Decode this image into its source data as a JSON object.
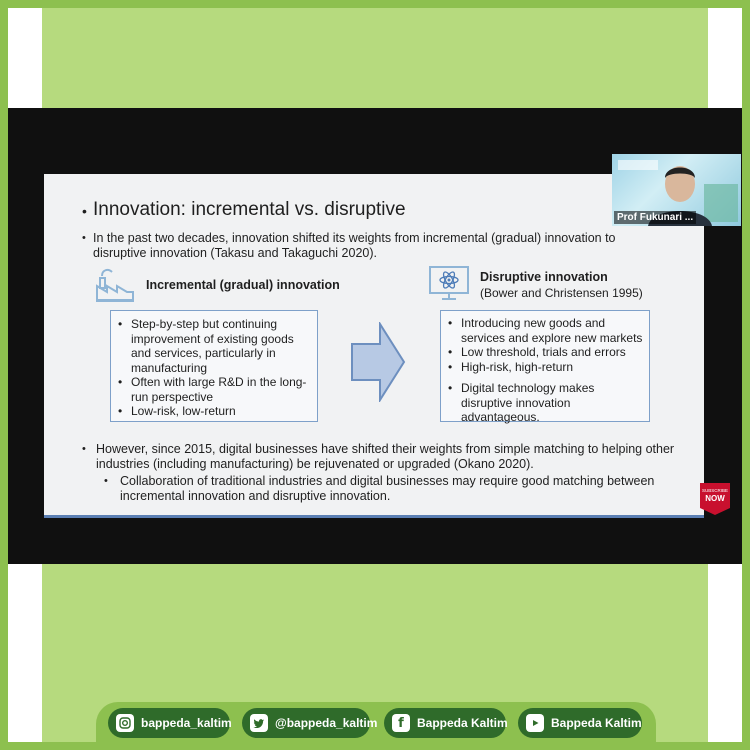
{
  "slide": {
    "title": "Innovation: incremental vs. disruptive",
    "intro": "In the past two decades, innovation shifted its weights from incremental (gradual) innovation to disruptive innovation (Takasu and Takaguchi 2020).",
    "left": {
      "heading": "Incremental (gradual) innovation",
      "items": [
        "Step-by-step but continuing improvement of existing goods and services, particularly in manufacturing",
        "Often with large R&D in the long-run perspective",
        "Low-risk, low-return"
      ]
    },
    "right": {
      "heading": "Disruptive innovation",
      "subheading": "(Bower and Christensen 1995)",
      "items": [
        "Introducing new goods and services and explore new markets",
        "Low threshold, trials and errors",
        "High-risk, high-return",
        "Digital technology makes disruptive innovation advantageous."
      ]
    },
    "however": "However, since 2015, digital businesses have shifted their weights from simple matching to helping other industries (including manufacturing) be rejuvenated or upgraded (Okano 2020).",
    "collab": "Collaboration of traditional industries and digital businesses may require good matching between incremental innovation and disruptive innovation."
  },
  "webcam": {
    "name": "Prof Fukunari ..."
  },
  "subscribe": {
    "label1": "SUBSCRIBE",
    "label2": "NOW"
  },
  "footer": {
    "instagram": "bappeda_kaltim",
    "twitter": "@bappeda_kaltim",
    "facebook": "Bappeda Kaltim",
    "youtube": "Bappeda Kaltim"
  },
  "colors": {
    "frame": "#8dc04f",
    "pill": "#2f6b2a",
    "accent": "#7ea0c9"
  }
}
